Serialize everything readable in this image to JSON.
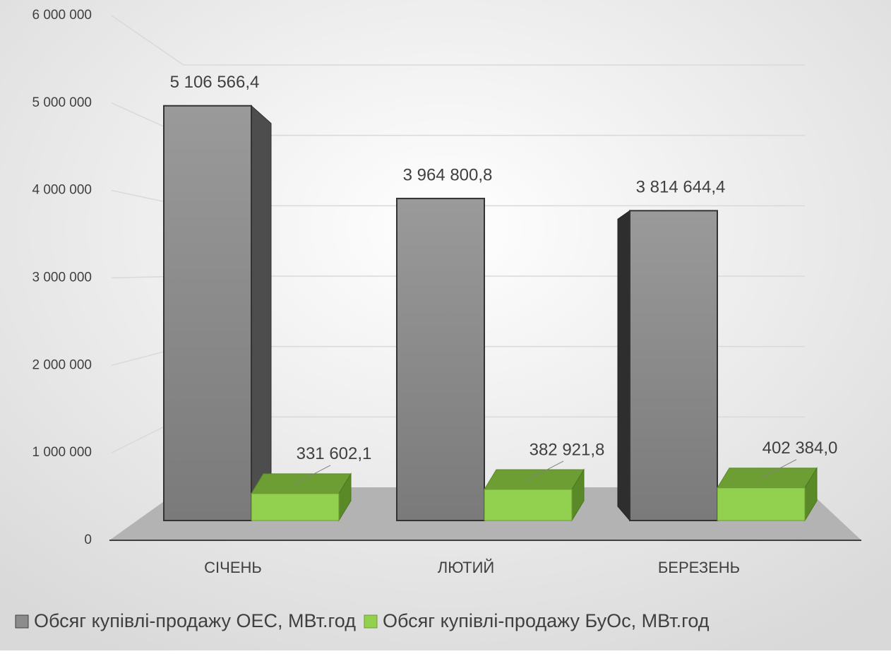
{
  "chart_data": {
    "type": "bar3d",
    "categories": [
      "СІЧЕНЬ",
      "ЛЮТИЙ",
      "БЕРЕЗЕНЬ"
    ],
    "series": [
      {
        "name": "Обсяг купівлі-продажу ОЕС, МВт.год",
        "color": "#8c8c8c",
        "values": [
          5106566.4,
          3964800.8,
          3814644.4
        ],
        "value_labels": [
          "5 106 566,4",
          "3 964 800,8",
          "3 814 644,4"
        ]
      },
      {
        "name": "Обсяг купівлі-продажу БуОс, МВт.год",
        "color": "#92d050",
        "values": [
          331602.1,
          382921.8,
          402384.0
        ],
        "value_labels": [
          "331 602,1",
          "382 921,8",
          "402 384,0"
        ]
      }
    ],
    "ylim": [
      0,
      6000000
    ],
    "yticks": [
      0,
      {
        "value": 1000000,
        "label": "1 000 000"
      },
      {
        "value": 2000000,
        "label": "2 000 000"
      },
      {
        "value": 3000000,
        "label": "3 000 000"
      },
      {
        "value": 4000000,
        "label": "4 000 000"
      },
      {
        "value": 5000000,
        "label": "5 000 000"
      },
      {
        "value": 6000000,
        "label": "6 000 000"
      }
    ],
    "grid": true,
    "legend": "bottom"
  }
}
